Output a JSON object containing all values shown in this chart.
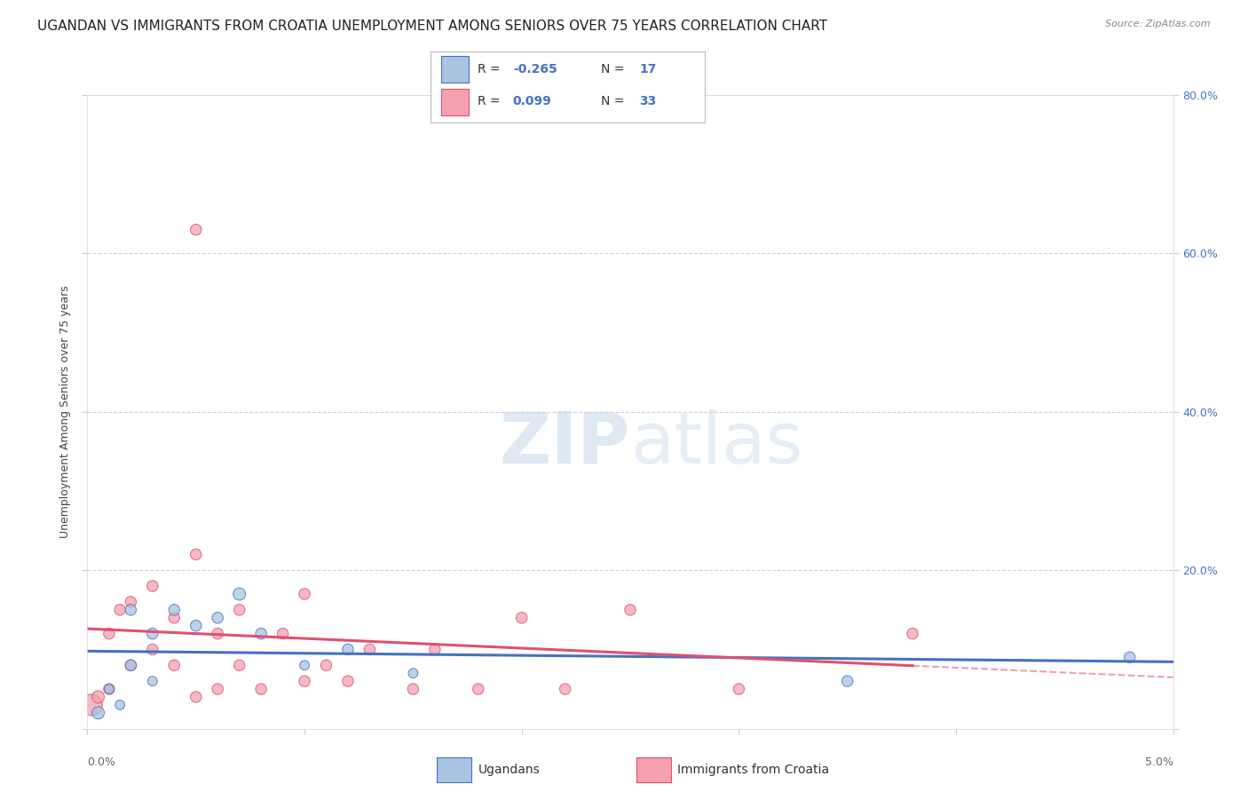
{
  "title": "UGANDAN VS IMMIGRANTS FROM CROATIA UNEMPLOYMENT AMONG SENIORS OVER 75 YEARS CORRELATION CHART",
  "source": "Source: ZipAtlas.com",
  "ylabel": "Unemployment Among Seniors over 75 years",
  "xlim": [
    0.0,
    0.05
  ],
  "ylim": [
    0.0,
    0.8
  ],
  "yticks": [
    0.0,
    0.2,
    0.4,
    0.6,
    0.8
  ],
  "ytick_labels_right": [
    "",
    "20.0%",
    "40.0%",
    "60.0%",
    "80.0%"
  ],
  "ugandans_R": -0.265,
  "ugandans_N": 17,
  "croatia_R": 0.099,
  "croatia_N": 33,
  "ugandans_color": "#a8c4e0",
  "croatia_color": "#f4a0b0",
  "ugandans_line_color": "#4472c4",
  "croatia_line_color": "#e05070",
  "ugandans_scatter_x": [
    0.0005,
    0.001,
    0.0015,
    0.002,
    0.002,
    0.003,
    0.003,
    0.004,
    0.005,
    0.006,
    0.007,
    0.008,
    0.01,
    0.012,
    0.015,
    0.035,
    0.048
  ],
  "ugandans_scatter_y": [
    0.02,
    0.05,
    0.03,
    0.15,
    0.08,
    0.12,
    0.06,
    0.15,
    0.13,
    0.14,
    0.17,
    0.12,
    0.08,
    0.1,
    0.07,
    0.06,
    0.09
  ],
  "ugandans_scatter_size": [
    100,
    60,
    60,
    80,
    80,
    80,
    60,
    80,
    80,
    80,
    100,
    80,
    60,
    80,
    60,
    80,
    80
  ],
  "croatia_scatter_x": [
    0.0002,
    0.0005,
    0.001,
    0.001,
    0.0015,
    0.002,
    0.002,
    0.003,
    0.003,
    0.004,
    0.004,
    0.005,
    0.005,
    0.006,
    0.006,
    0.007,
    0.007,
    0.008,
    0.009,
    0.01,
    0.01,
    0.011,
    0.012,
    0.013,
    0.015,
    0.016,
    0.018,
    0.02,
    0.022,
    0.025,
    0.03,
    0.038,
    0.005
  ],
  "croatia_scatter_y": [
    0.03,
    0.04,
    0.05,
    0.12,
    0.15,
    0.16,
    0.08,
    0.18,
    0.1,
    0.14,
    0.08,
    0.04,
    0.22,
    0.05,
    0.12,
    0.15,
    0.08,
    0.05,
    0.12,
    0.17,
    0.06,
    0.08,
    0.06,
    0.1,
    0.05,
    0.1,
    0.05,
    0.14,
    0.05,
    0.15,
    0.05,
    0.12,
    0.63
  ],
  "croatia_scatter_size": [
    300,
    100,
    80,
    80,
    80,
    80,
    80,
    80,
    80,
    80,
    80,
    80,
    80,
    80,
    80,
    80,
    80,
    80,
    80,
    80,
    80,
    80,
    80,
    80,
    80,
    80,
    80,
    80,
    80,
    80,
    80,
    80,
    80
  ],
  "watermark_zip": "ZIP",
  "watermark_atlas": "atlas",
  "background_color": "#ffffff",
  "grid_color": "#cccccc",
  "title_fontsize": 11,
  "axis_label_fontsize": 9,
  "tick_fontsize": 9,
  "right_tick_color": "#4472c4",
  "legend_R_color": "#4472c4",
  "legend_N_color": "#333333"
}
